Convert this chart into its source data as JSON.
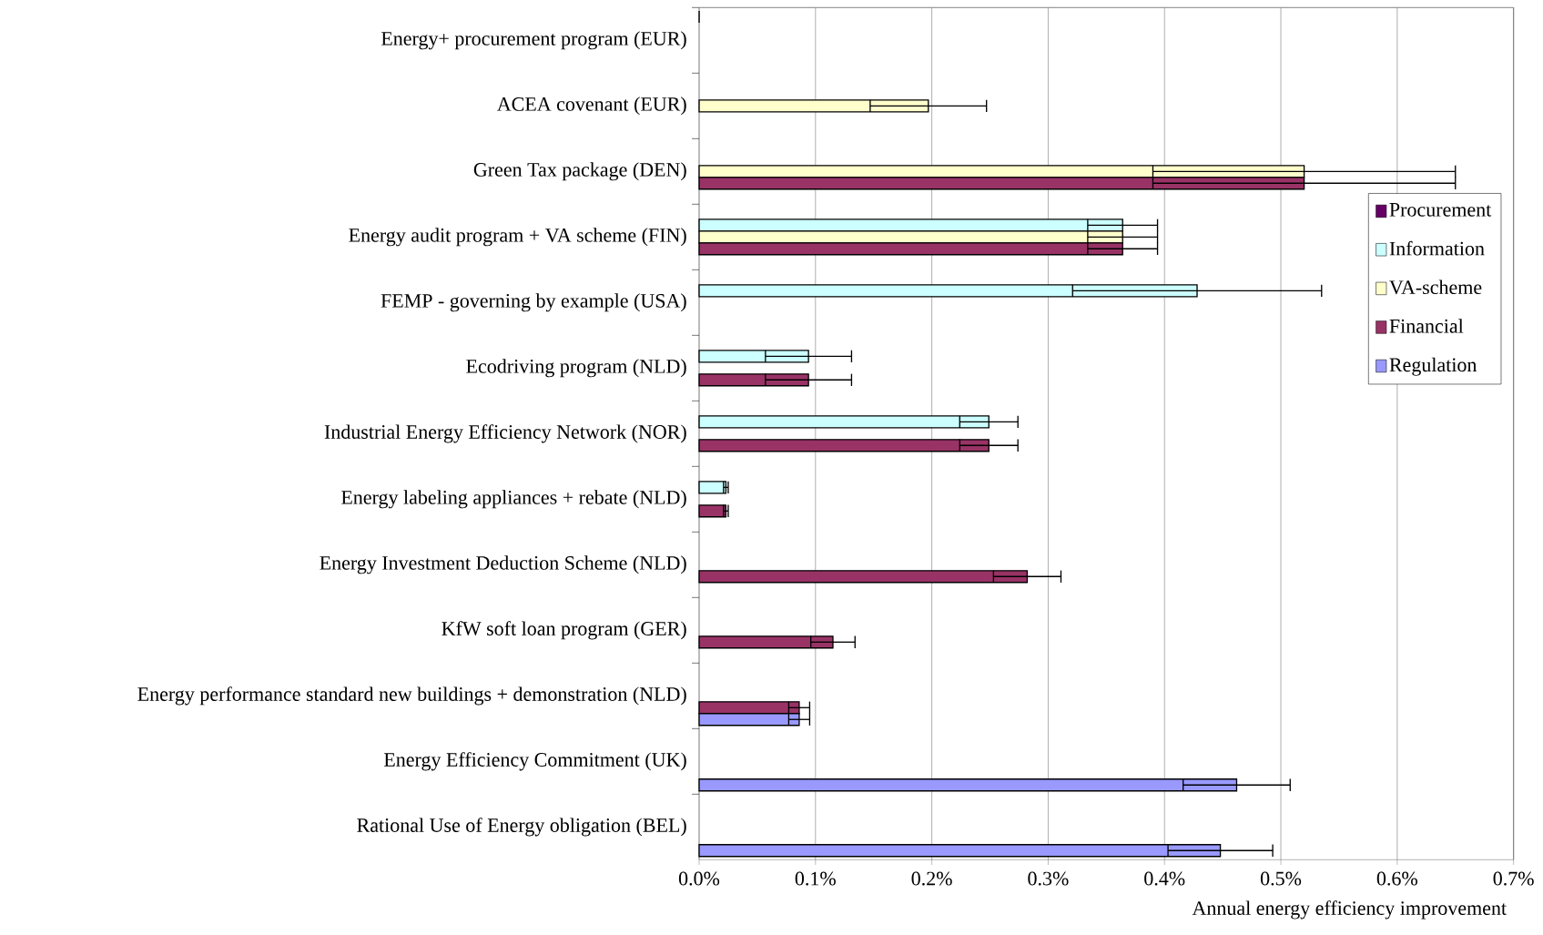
{
  "chart_data": {
    "type": "bar",
    "orientation": "horizontal",
    "xlabel": "Annual energy efficiency improvement",
    "categories": [
      "Energy+ procurement program (EUR)",
      "ACEA covenant (EUR)",
      "Green Tax package (DEN)",
      "Energy audit program + VA scheme (FIN)",
      "FEMP - governing by example (USA)",
      "Ecodriving program (NLD)",
      "Industrial Energy Efficiency Network (NOR)",
      "Energy labeling appliances + rebate (NLD)",
      "Energy Investment Deduction Scheme (NLD)",
      "KfW soft loan program (GER)",
      "Energy performance standard new buildings + demonstration (NLD)",
      "Energy Efficiency Commitment (UK)",
      "Rational Use of Energy obligation (BEL)"
    ],
    "series": [
      {
        "name": "Procurement",
        "color": "#660066",
        "values": [
          0,
          null,
          null,
          null,
          null,
          null,
          null,
          null,
          null,
          null,
          null,
          null,
          null
        ],
        "errors": [
          null,
          null,
          null,
          null,
          null,
          null,
          null,
          null,
          null,
          null,
          null,
          null,
          null
        ]
      },
      {
        "name": "Information",
        "color": "#ccffff",
        "values": [
          null,
          null,
          null,
          0.364,
          0.428,
          0.094,
          0.249,
          0.023,
          null,
          null,
          null,
          null,
          null
        ],
        "errors": [
          null,
          null,
          null,
          0.03,
          0.107,
          0.037,
          0.025,
          0.002,
          null,
          null,
          null,
          null,
          null
        ]
      },
      {
        "name": "VA-scheme",
        "color": "#ffffcc",
        "values": [
          null,
          0.197,
          0.52,
          0.364,
          null,
          null,
          null,
          null,
          null,
          null,
          null,
          null,
          null
        ],
        "errors": [
          null,
          0.05,
          0.13,
          0.03,
          null,
          null,
          null,
          null,
          null,
          null,
          null,
          null,
          null
        ]
      },
      {
        "name": "Financial",
        "color": "#993366",
        "values": [
          null,
          null,
          0.52,
          0.364,
          null,
          0.094,
          0.249,
          0.023,
          0.282,
          0.115,
          0.086,
          null,
          null
        ],
        "errors": [
          null,
          null,
          0.13,
          0.03,
          null,
          0.037,
          0.025,
          0.002,
          0.029,
          0.019,
          0.009,
          null,
          null
        ]
      },
      {
        "name": "Regulation",
        "color": "#9999ff",
        "values": [
          null,
          null,
          null,
          null,
          null,
          null,
          null,
          null,
          null,
          null,
          0.086,
          0.462,
          0.448
        ],
        "errors": [
          null,
          null,
          null,
          null,
          null,
          null,
          null,
          null,
          null,
          null,
          0.009,
          0.046,
          0.045
        ]
      }
    ],
    "xlim": [
      0,
      0.7
    ],
    "xticks": [
      {
        "value": 0,
        "label": "0.0%"
      },
      {
        "value": 0.1,
        "label": "0.1%"
      },
      {
        "value": 0.2,
        "label": "0.2%"
      },
      {
        "value": 0.3,
        "label": "0.3%"
      },
      {
        "value": 0.4,
        "label": "0.4%"
      },
      {
        "value": 0.5,
        "label": "0.5%"
      },
      {
        "value": 0.6,
        "label": "0.6%"
      },
      {
        "value": 0.7,
        "label": "0.7%"
      }
    ],
    "grid": "x",
    "legend": "right"
  }
}
